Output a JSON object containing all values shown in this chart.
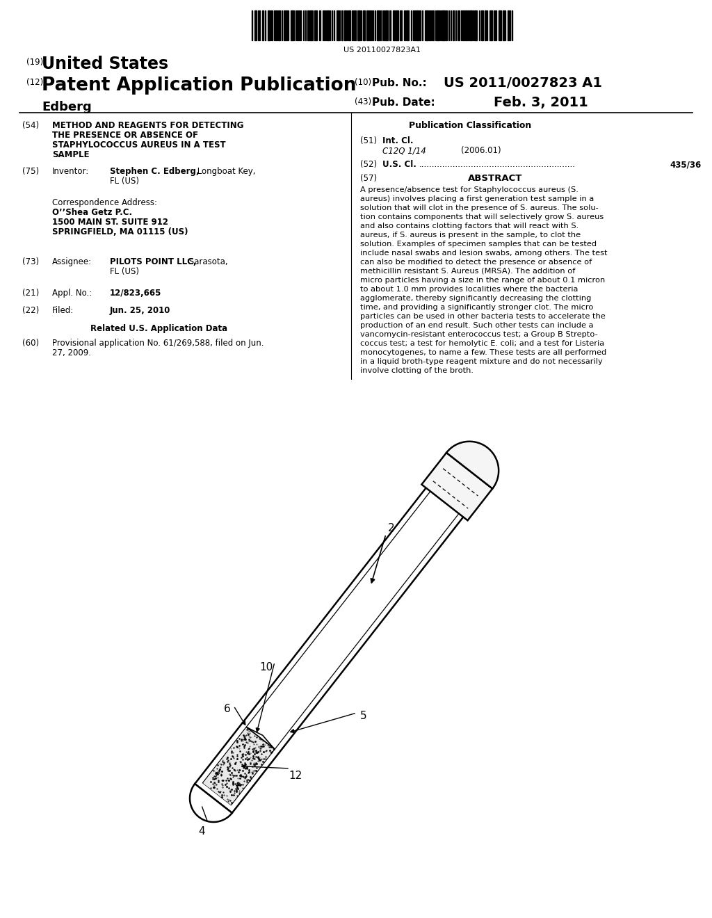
{
  "background_color": "#ffffff",
  "barcode_text": "US 20110027823A1",
  "header": {
    "country_num": "(19)",
    "country": "United States",
    "pub_type_num": "(12)",
    "pub_type": "Patent Application Publication",
    "inventor": "Edberg",
    "pub_no_num": "(10)",
    "pub_no_label": "Pub. No.:",
    "pub_no": "US 2011/0027823 A1",
    "pub_date_num": "(43)",
    "pub_date_label": "Pub. Date:",
    "pub_date": "Feb. 3, 2011"
  },
  "left_col": {
    "title_num": "(54)",
    "title_lines": [
      "METHOD AND REAGENTS FOR DETECTING",
      "THE PRESENCE OR ABSENCE OF",
      "STAPHYLOCOCCUS AUREUS IN A TEST",
      "SAMPLE"
    ],
    "inventor_num": "(75)",
    "inventor_label": "Inventor:",
    "inventor_name": "Stephen C. Edberg,",
    "inventor_rest": " Longboat Key,",
    "inventor_loc2": "FL (US)",
    "corr_label": "Correspondence Address:",
    "corr_name": "O’’Shea Getz P.C.",
    "corr_addr1": "1500 MAIN ST. SUITE 912",
    "corr_addr2": "SPRINGFIELD, MA 01115 (US)",
    "assignee_num": "(73)",
    "assignee_label": "Assignee:",
    "assignee_name": "PILOTS POINT LLC,",
    "assignee_rest": " Sarasota,",
    "assignee_loc2": "FL (US)",
    "appl_num": "(21)",
    "appl_label": "Appl. No.:",
    "appl_no": "12/823,665",
    "filed_num": "(22)",
    "filed_label": "Filed:",
    "filed_date": "Jun. 25, 2010",
    "related_label": "Related U.S. Application Data",
    "prov_num": "(60)",
    "prov_line1": "Provisional application No. 61/269,588, filed on Jun.",
    "prov_line2": "27, 2009."
  },
  "right_col": {
    "pub_class_label": "Publication Classification",
    "intcl_num": "(51)",
    "intcl_label": "Int. Cl.",
    "intcl_code": "C12Q 1/14",
    "intcl_year": "(2006.01)",
    "uscl_num": "(52)",
    "uscl_label": "U.S. Cl.",
    "uscl_dots": "............................................................",
    "uscl_val": "435/36",
    "abstract_num": "(57)",
    "abstract_label": "ABSTRACT",
    "abstract_lines": [
      "A presence/absence test for Staphylococcus aureus (S.",
      "aureus) involves placing a first generation test sample in a",
      "solution that will clot in the presence of S. aureus. The solu-",
      "tion contains components that will selectively grow S. aureus",
      "and also contains clotting factors that will react with S.",
      "aureus, if S. aureus is present in the sample, to clot the",
      "solution. Examples of specimen samples that can be tested",
      "include nasal swabs and lesion swabs, among others. The test",
      "can also be modified to detect the presence or absence of",
      "methicillin resistant S. Aureus (MRSA). The addition of",
      "micro particles having a size in the range of about 0.1 micron",
      "to about 1.0 mm provides localities where the bacteria",
      "agglomerate, thereby significantly decreasing the clotting",
      "time, and providing a significantly stronger clot. The micro",
      "particles can be used in other bacteria tests to accelerate the",
      "production of an end result. Such other tests can include a",
      "vancomycin-resistant enterococcus test; a Group B Strepto-",
      "coccus test; a test for hemolytic E. coli; and a test for Listeria",
      "monocytogenes, to name a few. These tests are all performed",
      "in a liquid broth-type reagent mixture and do not necessarily",
      "involve clotting of the broth."
    ]
  }
}
